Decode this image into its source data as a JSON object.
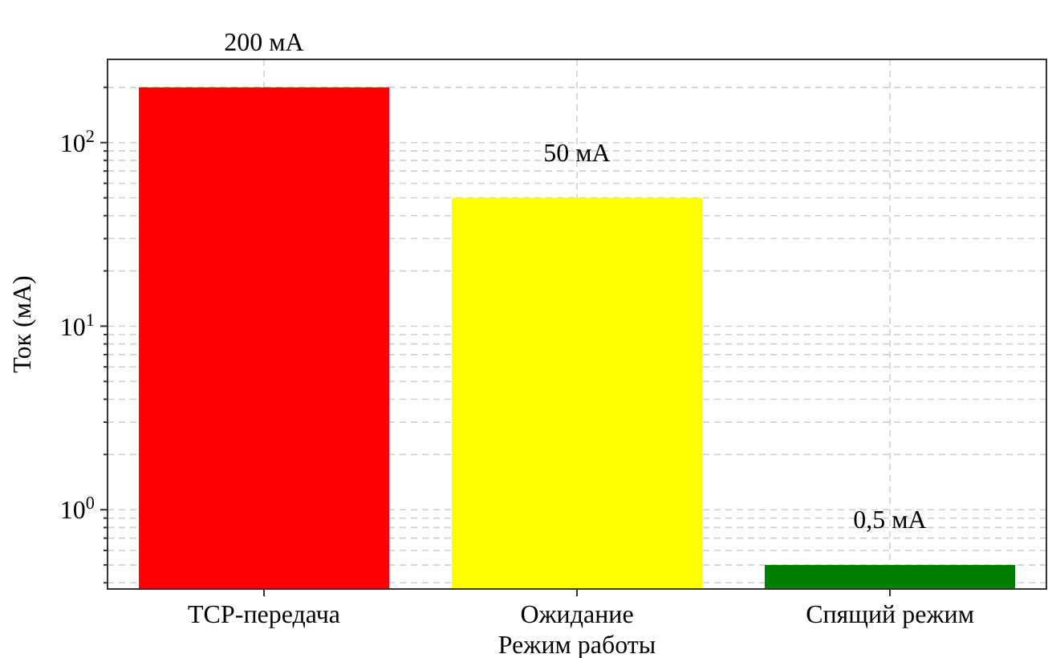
{
  "chart_data": {
    "type": "bar",
    "xlabel": "Режим работы",
    "ylabel": "Ток (мА)",
    "categories": [
      "TCP-передача",
      "Ожидание",
      "Спящий режим"
    ],
    "values": [
      200,
      50,
      0.5
    ],
    "colors": [
      "#ff0000",
      "#ffff00",
      "#008000"
    ],
    "value_labels": [
      "200 мА",
      "50 мА",
      "0,5 мА"
    ],
    "log": true,
    "ylim": [
      0.37,
      284
    ],
    "yticks": [
      {
        "value": 0.4,
        "label": null
      },
      {
        "value": 0.5,
        "label": null
      },
      {
        "value": 0.6,
        "label": null
      },
      {
        "value": 0.7,
        "label": null
      },
      {
        "value": 0.8,
        "label": null
      },
      {
        "value": 0.9,
        "label": null
      },
      {
        "value": 1,
        "label": "10$^{0}$"
      },
      {
        "value": 2,
        "label": null
      },
      {
        "value": 3,
        "label": null
      },
      {
        "value": 4,
        "label": null
      },
      {
        "value": 5,
        "label": null
      },
      {
        "value": 6,
        "label": null
      },
      {
        "value": 7,
        "label": null
      },
      {
        "value": 8,
        "label": null
      },
      {
        "value": 9,
        "label": null
      },
      {
        "value": 10,
        "label": "10$^{1}$"
      },
      {
        "value": 20,
        "label": null
      },
      {
        "value": 30,
        "label": null
      },
      {
        "value": 40,
        "label": null
      },
      {
        "value": 50,
        "label": null
      },
      {
        "value": 60,
        "label": null
      },
      {
        "value": 70,
        "label": null
      },
      {
        "value": 80,
        "label": null
      },
      {
        "value": 90,
        "label": null
      },
      {
        "value": 100,
        "label": "10$^{2}$"
      },
      {
        "value": 200,
        "label": null
      }
    ],
    "grid": true
  }
}
